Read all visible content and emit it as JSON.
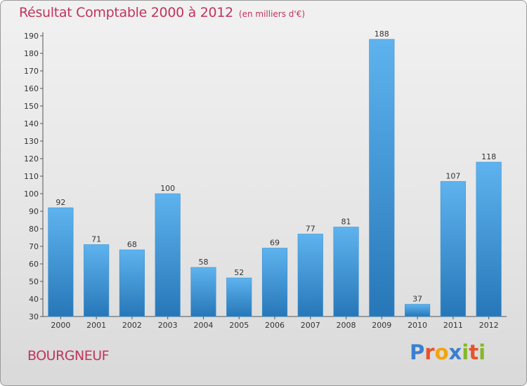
{
  "header": {
    "title": "Résultat Comptable 2000 à 2012",
    "subtitle": "(en milliers d'€)"
  },
  "footer": {
    "town": "BOURGNEUF"
  },
  "logo": {
    "letters": [
      "P",
      "r",
      "o",
      "x",
      "i",
      "t",
      "i"
    ],
    "colors": [
      "#3b7fd0",
      "#e8532a",
      "#f2a40c",
      "#3b7fd0",
      "#84b82a",
      "#e8532a",
      "#84b82a"
    ]
  },
  "colors": {
    "bar_light": "#5eb3ee",
    "bar_dark": "#2777b8",
    "title": "#c0345a"
  },
  "chart_data": {
    "type": "bar",
    "title": "Résultat Comptable 2000 à 2012",
    "xlabel": "",
    "ylabel": "",
    "categories": [
      "2000",
      "2001",
      "2002",
      "2003",
      "2004",
      "2005",
      "2006",
      "2007",
      "2008",
      "2009",
      "2010",
      "2011",
      "2012"
    ],
    "values": [
      92,
      71,
      68,
      100,
      58,
      52,
      69,
      77,
      81,
      188,
      37,
      107,
      118
    ],
    "ylim": [
      30,
      190
    ],
    "yticks": [
      30,
      40,
      50,
      60,
      70,
      80,
      90,
      100,
      110,
      120,
      130,
      140,
      150,
      160,
      170,
      180,
      190
    ],
    "grid": false,
    "data_labels": true
  }
}
